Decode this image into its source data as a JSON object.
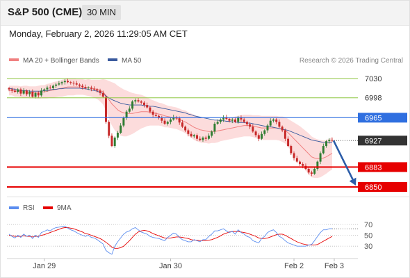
{
  "header": {
    "title": "S&P 500 (CME)",
    "timeframe": "30 MIN"
  },
  "datetime": "Monday, February 2, 2026 11:29:05 AM CET",
  "legend": {
    "ma20": "MA 20 + Bollinger Bands",
    "ma50": "MA 50",
    "credit": "Research © 2026 Trading Central"
  },
  "rsi_legend": {
    "rsi": "RSI",
    "ma9": "9MA"
  },
  "colors": {
    "resistance": "#8cc63f",
    "pivot": "#2f6fe0",
    "support": "#e60000",
    "last": "#333333",
    "ma20": "#f08080",
    "ma50": "#3a5a9e",
    "band_fill": "#fcdcdc",
    "bull": "#2f7d32",
    "bear": "#c62828",
    "arrow": "#2b5ca8",
    "rsi": "#5b8def",
    "rsi_ma": "#e60000"
  },
  "chart_data": [
    {
      "type": "candlestick",
      "title": "S&P 500 (CME) 30 MIN",
      "x_tick_labels": [
        "Jan 29",
        "Jan 30",
        "Feb 2",
        "Feb 3"
      ],
      "ylim": [
        6835,
        7045
      ],
      "levels": [
        {
          "label": "7030",
          "value": 7030,
          "kind": "resistance"
        },
        {
          "label": "6998",
          "value": 6998,
          "kind": "resistance"
        },
        {
          "label": "6965",
          "value": 6965,
          "kind": "pivot"
        },
        {
          "label": "6927",
          "value": 6927,
          "kind": "last"
        },
        {
          "label": "6883",
          "value": 6883,
          "kind": "support"
        },
        {
          "label": "6850",
          "value": 6850,
          "kind": "support"
        }
      ],
      "forecast": {
        "from": 6927,
        "to": 6850
      },
      "close": [
        7012,
        7010,
        7008,
        7012,
        7005,
        7010,
        7004,
        7008,
        7000,
        7006,
        7002,
        7010,
        7012,
        7015,
        7014,
        7018,
        7020,
        7022,
        7024,
        7026,
        7024,
        7023,
        7022,
        7020,
        7018,
        7016,
        7014,
        7015,
        7013,
        7012,
        7010,
        7006,
        7000,
        6958,
        6935,
        6918,
        6932,
        6940,
        6952,
        6965,
        6975,
        6980,
        6992,
        6994,
        6992,
        6990,
        6986,
        6982,
        6975,
        6970,
        6968,
        6965,
        6960,
        6955,
        6958,
        6962,
        6966,
        6964,
        6957,
        6950,
        6944,
        6938,
        6934,
        6936,
        6930,
        6928,
        6932,
        6930,
        6935,
        6942,
        6955,
        6958,
        6962,
        6966,
        6963,
        6960,
        6962,
        6958,
        6966,
        6962,
        6958,
        6954,
        6950,
        6942,
        6936,
        6930,
        6938,
        6944,
        6952,
        6960,
        6962,
        6958,
        6950,
        6944,
        6930,
        6918,
        6906,
        6898,
        6892,
        6888,
        6885,
        6880,
        6874,
        6872,
        6880,
        6892,
        6906,
        6918,
        6926,
        6928,
        6927
      ],
      "ma20": [
        7010,
        7010,
        7009,
        7009,
        7008,
        7008,
        7008,
        7007,
        7007,
        7007,
        7007,
        7008,
        7008,
        7009,
        7010,
        7011,
        7012,
        7013,
        7014,
        7015,
        7016,
        7016,
        7016,
        7016,
        7016,
        7016,
        7015,
        7015,
        7014,
        7013,
        7012,
        7010,
        7008,
        7002,
        6995,
        6988,
        6983,
        6978,
        6975,
        6973,
        6972,
        6972,
        6972,
        6973,
        6974,
        6975,
        6975,
        6975,
        6974,
        6973,
        6972,
        6971,
        6970,
        6968,
        6967,
        6966,
        6965,
        6964,
        6962,
        6960,
        6958,
        6955,
        6952,
        6949,
        6947,
        6945,
        6944,
        6943,
        6942,
        6942,
        6942,
        6943,
        6944,
        6945,
        6946,
        6947,
        6948,
        6949,
        6950,
        6951,
        6952,
        6952,
        6952,
        6951,
        6950,
        6949,
        6948,
        6948,
        6948,
        6948,
        6948,
        6948,
        6947,
        6946,
        6944,
        6940,
        6935,
        6930,
        6925,
        6920,
        6915,
        6910,
        6905,
        6900,
        6898,
        6897,
        6897,
        6898,
        6900,
        6903,
        6906
      ],
      "ma50": [
        7014,
        7013,
        7012,
        7011,
        7010,
        7010,
        7010,
        7009,
        7009,
        7009,
        7009,
        7009,
        7010,
        7010,
        7011,
        7012,
        7012,
        7013,
        7013,
        7014,
        7014,
        7014,
        7014,
        7014,
        7014,
        7013,
        7013,
        7012,
        7011,
        7010,
        7009,
        7007,
        7005,
        7001,
        6998,
        6995,
        6993,
        6991,
        6989,
        6988,
        6987,
        6986,
        6986,
        6986,
        6986,
        6986,
        6985,
        6985,
        6984,
        6984,
        6983,
        6982,
        6981,
        6980,
        6979,
        6978,
        6977,
        6976,
        6975,
        6974,
        6973,
        6971,
        6970,
        6968,
        6967,
        6966,
        6965,
        6964,
        6963,
        6962,
        6961,
        6961,
        6960,
        6960,
        6959,
        6959,
        6958,
        6958,
        6957,
        6957,
        6957,
        6956,
        6956,
        6955,
        6954,
        6953,
        6952,
        6951,
        6950,
        6950,
        6949,
        6948,
        6947,
        6946,
        6945,
        6944,
        6942,
        6940,
        6938,
        6936,
        6934,
        6932,
        6930,
        6928,
        6927,
        6926,
        6925,
        6924,
        6924,
        6924,
        6924
      ],
      "band_width": [
        8,
        8,
        9,
        9,
        9,
        10,
        10,
        10,
        10,
        10,
        11,
        11,
        11,
        12,
        12,
        13,
        13,
        13,
        14,
        14,
        14,
        14,
        14,
        13,
        13,
        13,
        13,
        14,
        14,
        15,
        16,
        18,
        21,
        26,
        31,
        36,
        39,
        40,
        40,
        39,
        38,
        36,
        34,
        32,
        30,
        28,
        26,
        24,
        22,
        21,
        20,
        19,
        19,
        19,
        18,
        18,
        18,
        18,
        18,
        18,
        19,
        19,
        20,
        21,
        21,
        21,
        21,
        20,
        20,
        19,
        19,
        19,
        18,
        18,
        18,
        18,
        18,
        18,
        18,
        18,
        18,
        18,
        18,
        18,
        19,
        20,
        20,
        20,
        20,
        20,
        20,
        20,
        20,
        21,
        22,
        23,
        25,
        27,
        29,
        31,
        32,
        33,
        34,
        34,
        33,
        32,
        31,
        29,
        28,
        27,
        27
      ]
    },
    {
      "type": "line",
      "title": "RSI",
      "ylim": [
        20,
        80
      ],
      "y_ticks": [
        30,
        50,
        70
      ],
      "series": [
        {
          "name": "RSI",
          "values": [
            52,
            48,
            45,
            50,
            46,
            52,
            48,
            50,
            44,
            50,
            46,
            55,
            57,
            60,
            58,
            62,
            64,
            65,
            66,
            67,
            63,
            60,
            58,
            55,
            52,
            50,
            48,
            50,
            46,
            45,
            42,
            38,
            34,
            22,
            18,
            15,
            30,
            38,
            45,
            52,
            56,
            58,
            62,
            64,
            60,
            56,
            54,
            52,
            48,
            46,
            45,
            44,
            42,
            40,
            46,
            50,
            54,
            52,
            46,
            42,
            40,
            38,
            38,
            42,
            40,
            38,
            42,
            42,
            48,
            52,
            58,
            58,
            60,
            62,
            58,
            55,
            57,
            52,
            60,
            55,
            52,
            48,
            46,
            40,
            38,
            36,
            44,
            48,
            55,
            58,
            60,
            55,
            48,
            45,
            40,
            36,
            34,
            32,
            30,
            30,
            30,
            30,
            32,
            33,
            40,
            48,
            55,
            60,
            60,
            62,
            62
          ]
        },
        {
          "name": "9MA",
          "values": [
            50,
            49,
            48,
            48,
            48,
            49,
            48,
            48,
            47,
            48,
            48,
            50,
            51,
            53,
            55,
            57,
            59,
            61,
            63,
            64,
            64,
            63,
            62,
            60,
            58,
            56,
            53,
            52,
            50,
            48,
            46,
            44,
            41,
            37,
            33,
            28,
            26,
            26,
            27,
            30,
            35,
            40,
            46,
            52,
            56,
            58,
            59,
            58,
            56,
            53,
            51,
            49,
            47,
            45,
            45,
            45,
            46,
            47,
            47,
            46,
            45,
            44,
            42,
            41,
            41,
            40,
            40,
            40,
            41,
            42,
            44,
            46,
            49,
            52,
            54,
            56,
            57,
            57,
            57,
            56,
            55,
            54,
            52,
            50,
            48,
            45,
            44,
            44,
            45,
            47,
            49,
            51,
            52,
            52,
            50,
            47,
            44,
            41,
            38,
            36,
            34,
            33,
            32,
            32,
            32,
            33,
            36,
            39,
            42,
            45,
            48
          ]
        }
      ]
    }
  ]
}
